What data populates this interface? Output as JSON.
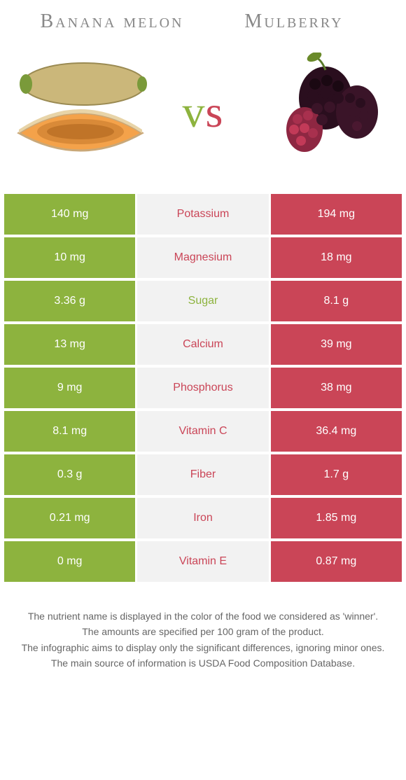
{
  "left_food": "Banana melon",
  "right_food": "Mulberry",
  "vs_text": "vs",
  "colors": {
    "left": "#8db33e",
    "right": "#ca4557",
    "mid_bg": "#f2f2f2",
    "vs_left": "#8db33e",
    "vs_right": "#ca4557"
  },
  "rows": [
    {
      "nutrient": "Potassium",
      "left": "140 mg",
      "right": "194 mg",
      "winner": "right"
    },
    {
      "nutrient": "Magnesium",
      "left": "10 mg",
      "right": "18 mg",
      "winner": "right"
    },
    {
      "nutrient": "Sugar",
      "left": "3.36 g",
      "right": "8.1 g",
      "winner": "left"
    },
    {
      "nutrient": "Calcium",
      "left": "13 mg",
      "right": "39 mg",
      "winner": "right"
    },
    {
      "nutrient": "Phosphorus",
      "left": "9 mg",
      "right": "38 mg",
      "winner": "right"
    },
    {
      "nutrient": "Vitamin C",
      "left": "8.1 mg",
      "right": "36.4 mg",
      "winner": "right"
    },
    {
      "nutrient": "Fiber",
      "left": "0.3 g",
      "right": "1.7 g",
      "winner": "right"
    },
    {
      "nutrient": "Iron",
      "left": "0.21 mg",
      "right": "1.85 mg",
      "winner": "right"
    },
    {
      "nutrient": "Vitamin E",
      "left": "0 mg",
      "right": "0.87 mg",
      "winner": "right"
    }
  ],
  "footer": [
    "The nutrient name is displayed in the color of the food we considered as 'winner'.",
    "The amounts are specified per 100 gram of the product.",
    "The infographic aims to display only the significant differences, ignoring minor ones.",
    "The main source of information is USDA Food Composition Database."
  ]
}
